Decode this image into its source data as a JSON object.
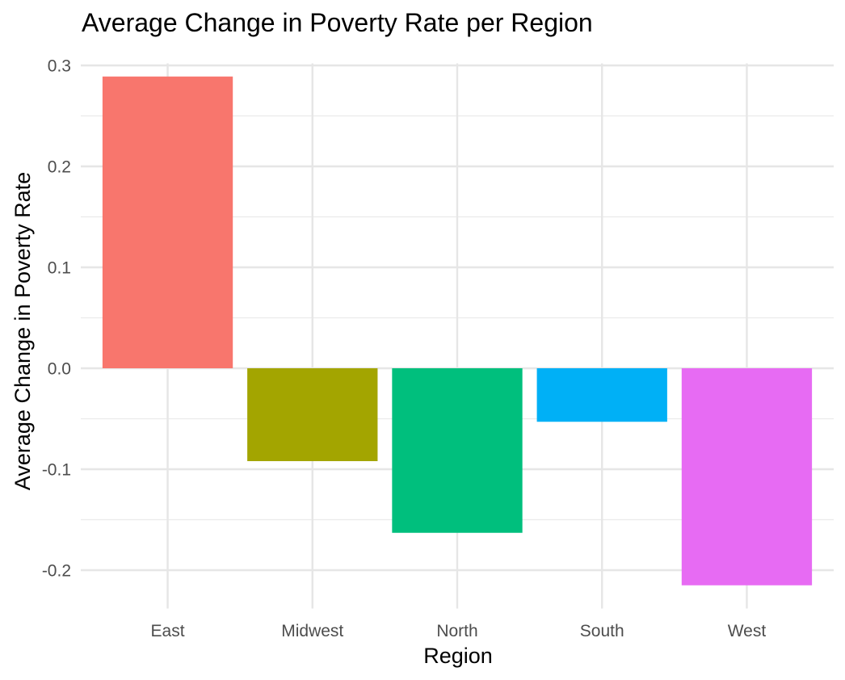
{
  "chart_data": {
    "type": "bar",
    "title": "Average Change in Poverty Rate per Region",
    "xlabel": "Region",
    "ylabel": "Average Change in Poverty Rate",
    "categories": [
      "East",
      "Midwest",
      "North",
      "South",
      "West"
    ],
    "values": [
      0.289,
      -0.092,
      -0.163,
      -0.053,
      -0.215
    ],
    "colors": [
      "#F8766D",
      "#A3A500",
      "#00BF7D",
      "#00B0F6",
      "#E76BF3"
    ],
    "ylim": [
      -0.238,
      0.302
    ],
    "yticks": [
      -0.2,
      -0.1,
      0.0,
      0.1,
      0.2,
      0.3
    ],
    "ytick_labels": [
      "-0.2",
      "-0.1",
      "0.0",
      "0.1",
      "0.2",
      "0.3"
    ],
    "grid": true,
    "legend": "none"
  }
}
